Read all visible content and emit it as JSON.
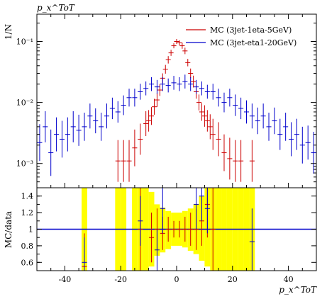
{
  "chart_data": [
    {
      "type": "line",
      "panel": "main",
      "title": "",
      "xlabel": "",
      "ylabel": "1/N",
      "corner_label": "p_x^ToT",
      "yscale": "log",
      "xlim": [
        -50,
        50
      ],
      "ylim": [
        0.0004,
        0.28
      ],
      "y_tick_labels": [
        "10⁻³",
        "10⁻²",
        "10⁻¹"
      ],
      "legend_position": "top-right",
      "colors": {
        "red": "#cc0000",
        "blue": "#0000cc"
      },
      "series": [
        {
          "name": "MC (3jet-1eta-5GeV)",
          "color": "#cc0000",
          "x": [
            -21,
            -19,
            -17,
            -15,
            -13,
            -11,
            -10,
            -9,
            -8,
            -7,
            -6,
            -5,
            -4,
            -3,
            -2,
            -1,
            0,
            1,
            2,
            3,
            4,
            5,
            6,
            7,
            8,
            9,
            10,
            11,
            12,
            13,
            15,
            17,
            19,
            21,
            23,
            27
          ],
          "y": [
            0.0011,
            0.0011,
            0.0011,
            0.0018,
            0.0025,
            0.0045,
            0.005,
            0.006,
            0.0085,
            0.011,
            0.016,
            0.025,
            0.035,
            0.05,
            0.065,
            0.085,
            0.1,
            0.095,
            0.085,
            0.07,
            0.045,
            0.03,
            0.022,
            0.015,
            0.01,
            0.007,
            0.006,
            0.005,
            0.004,
            0.003,
            0.0025,
            0.0015,
            0.0012,
            0.0011,
            0.0011,
            0.0011
          ],
          "err_factor": [
            2.2,
            2.2,
            2.2,
            2.0,
            1.8,
            1.6,
            1.5,
            1.4,
            1.35,
            1.3,
            1.25,
            1.2,
            1.18,
            1.15,
            1.12,
            1.1,
            1.1,
            1.1,
            1.12,
            1.13,
            1.15,
            1.2,
            1.25,
            1.3,
            1.35,
            1.4,
            1.5,
            1.5,
            1.6,
            1.8,
            1.9,
            2.0,
            2.2,
            2.2,
            2.2,
            2.2
          ]
        },
        {
          "name": "MC (3jet-eta1-20GeV)",
          "color": "#0000cc",
          "x": [
            -49,
            -47,
            -45,
            -43,
            -41,
            -39,
            -37,
            -35,
            -33,
            -31,
            -29,
            -27,
            -25,
            -23,
            -21,
            -19,
            -17,
            -15,
            -13,
            -11,
            -9,
            -7,
            -5,
            -3,
            -1,
            1,
            3,
            5,
            7,
            9,
            11,
            13,
            15,
            17,
            19,
            21,
            23,
            25,
            27,
            29,
            31,
            33,
            35,
            37,
            39,
            41,
            43,
            45,
            47,
            49
          ],
          "y": [
            0.0022,
            0.004,
            0.0015,
            0.003,
            0.0025,
            0.003,
            0.004,
            0.0035,
            0.004,
            0.006,
            0.005,
            0.004,
            0.006,
            0.008,
            0.007,
            0.009,
            0.012,
            0.012,
            0.015,
            0.017,
            0.02,
            0.018,
            0.02,
            0.019,
            0.021,
            0.02,
            0.022,
            0.02,
            0.018,
            0.017,
            0.015,
            0.015,
            0.012,
            0.01,
            0.012,
            0.009,
            0.008,
            0.007,
            0.006,
            0.005,
            0.006,
            0.004,
            0.005,
            0.003,
            0.004,
            0.0025,
            0.003,
            0.002,
            0.0022,
            0.0015
          ],
          "err_factor": [
            2.0,
            1.8,
            2.4,
            1.9,
            2.0,
            1.9,
            1.8,
            1.8,
            1.7,
            1.6,
            1.6,
            1.7,
            1.6,
            1.5,
            1.5,
            1.45,
            1.4,
            1.4,
            1.35,
            1.3,
            1.3,
            1.3,
            1.3,
            1.3,
            1.3,
            1.3,
            1.3,
            1.3,
            1.3,
            1.3,
            1.3,
            1.35,
            1.4,
            1.45,
            1.4,
            1.5,
            1.5,
            1.55,
            1.6,
            1.65,
            1.6,
            1.7,
            1.65,
            1.8,
            1.7,
            1.9,
            1.8,
            2.0,
            1.9,
            2.2
          ]
        }
      ]
    },
    {
      "type": "line",
      "panel": "ratio",
      "title": "",
      "xlabel": "p_x^ToT",
      "ylabel": "MC/data",
      "xlim": [
        -50,
        50
      ],
      "ylim": [
        0.5,
        1.5
      ],
      "x_ticks": [
        -40,
        -20,
        0,
        20,
        40
      ],
      "y_ticks": [
        0.6,
        0.8,
        1,
        1.2,
        1.4
      ],
      "reference_line": 1,
      "band_color": "#ffff00",
      "band": {
        "x": [
          -33,
          -21,
          -19,
          -15,
          -13,
          -11,
          -9,
          -7,
          -5,
          -3,
          -1,
          1,
          3,
          5,
          7,
          9,
          11,
          13,
          15,
          17,
          19,
          21,
          23,
          25,
          27
        ],
        "lo": [
          0.5,
          0.5,
          0.5,
          0.5,
          0.5,
          0.5,
          0.55,
          0.68,
          0.72,
          0.76,
          0.8,
          0.8,
          0.78,
          0.74,
          0.7,
          0.62,
          0.55,
          0.5,
          0.5,
          0.5,
          0.5,
          0.5,
          0.5,
          0.5,
          0.5
        ],
        "hi": [
          1.5,
          1.5,
          1.5,
          1.5,
          1.5,
          1.5,
          1.45,
          1.3,
          1.26,
          1.22,
          1.2,
          1.2,
          1.22,
          1.25,
          1.3,
          1.4,
          1.5,
          1.5,
          1.5,
          1.5,
          1.5,
          1.5,
          1.5,
          1.5,
          1.5
        ]
      },
      "series": [
        {
          "color": "#cc0000",
          "x": [
            -33,
            -13,
            -9,
            -7,
            -5,
            -3,
            -1,
            1,
            3,
            5,
            7,
            9,
            11,
            13
          ],
          "y": [
            0.55,
            1.0,
            0.9,
            1.0,
            0.95,
            1.0,
            1.0,
            1.0,
            1.0,
            1.0,
            1.0,
            1.1,
            1.3,
            1.0
          ],
          "err": [
            0.4,
            0.5,
            0.3,
            0.25,
            0.2,
            0.15,
            0.1,
            0.1,
            0.15,
            0.2,
            0.25,
            0.3,
            0.4,
            0.5
          ]
        },
        {
          "color": "#0000cc",
          "x": [
            -33,
            -13,
            -7,
            -5,
            7,
            9,
            11,
            27
          ],
          "y": [
            0.6,
            1.1,
            0.75,
            1.25,
            1.3,
            1.4,
            1.25,
            0.85
          ],
          "err": [
            0.3,
            0.3,
            0.25,
            0.3,
            0.3,
            0.3,
            0.3,
            0.4
          ]
        }
      ]
    }
  ]
}
